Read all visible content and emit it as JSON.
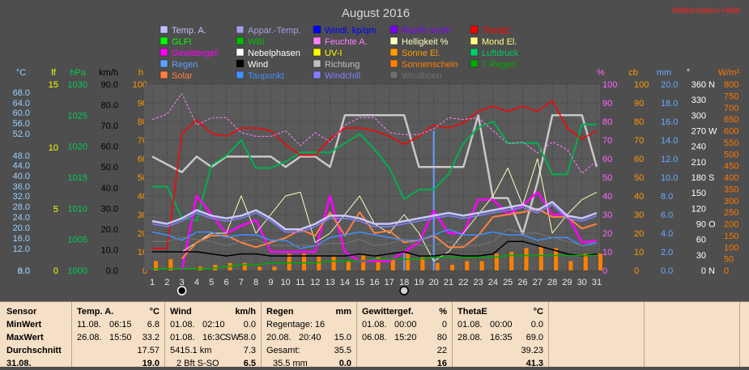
{
  "chart_data": {
    "type": "line",
    "title": "August 2016",
    "corner_link": "Wetterstation Halle",
    "days": [
      1,
      2,
      3,
      4,
      5,
      6,
      7,
      8,
      9,
      10,
      11,
      12,
      13,
      14,
      15,
      16,
      17,
      18,
      19,
      20,
      21,
      22,
      23,
      24,
      25,
      26,
      27,
      28,
      29,
      30,
      31
    ],
    "axes": {
      "celsius": {
        "label": "°C",
        "ticks": [
          "68.0",
          "64.0",
          "60.0",
          "56.0",
          "52.0",
          "48.0",
          "44.0",
          "40.0",
          "36.0",
          "32.0",
          "28.0",
          "24.0",
          "20.0",
          "16.0",
          "12.0",
          "8.0",
          "0.0"
        ],
        "color": "#9ad0ff"
      },
      "lf": {
        "label": "lf",
        "ticks": [
          "15",
          "10",
          "5",
          "0"
        ],
        "color": "#ffff00"
      },
      "hpa": {
        "label": "hPa",
        "ticks": [
          "1030",
          "1025",
          "1020",
          "1015",
          "1010",
          "1005",
          "1000"
        ],
        "color": "#00cc55"
      },
      "kmh": {
        "label": "km/h",
        "ticks": [
          "90.0",
          "80.0",
          "70.0",
          "60.0",
          "50.0",
          "40.0",
          "30.0",
          "20.0",
          "10.0",
          "0.0"
        ],
        "color": "#000000"
      },
      "hours": {
        "label": "h",
        "ticks": [
          "100",
          "90",
          "80",
          "70",
          "60",
          "50",
          "40",
          "30",
          "20",
          "10",
          "0"
        ],
        "color": "#ff9900"
      },
      "percent": {
        "label": "%",
        "ticks": [
          "100",
          "90",
          "80",
          "70",
          "60",
          "50",
          "40",
          "30",
          "20",
          "10",
          "0"
        ],
        "color": "#ff66ff"
      },
      "cb": {
        "label": "cb",
        "ticks": [
          "100",
          "90",
          "80",
          "70",
          "60",
          "50",
          "40",
          "30",
          "20",
          "10",
          "0"
        ],
        "color": "#ff9900"
      },
      "mm": {
        "label": "mm",
        "ticks": [
          "20.0",
          "18.0",
          "16.0",
          "14.0",
          "12.0",
          "10.0",
          "8.0",
          "6.0",
          "4.0",
          "2.0",
          "0.0"
        ],
        "color": "#66aaff"
      },
      "deg": {
        "label": "°",
        "ticks": [
          "360",
          "330",
          "300",
          "270",
          "240",
          "210",
          "180",
          "150",
          "120",
          "90",
          "60",
          "30",
          "0"
        ],
        "dirs": [
          "N",
          "",
          "",
          "W",
          "",
          "",
          "S",
          "",
          "",
          "O",
          "",
          "",
          "N"
        ],
        "color": "#ffffff"
      },
      "wm2": {
        "label": "W/m²",
        "ticks": [
          "800",
          "750",
          "700",
          "650",
          "600",
          "550",
          "500",
          "450",
          "400",
          "350",
          "300",
          "250",
          "200",
          "150",
          "100",
          "50",
          "0"
        ],
        "color": "#ff7700"
      }
    },
    "legend": [
      {
        "name": "Temp. A.",
        "color": "#c0c0ff"
      },
      {
        "name": "Appar.-Temp.",
        "color": "#a0a0e0"
      },
      {
        "name": "Windl. kp/qm",
        "color": "#0000ff"
      },
      {
        "name": "RainR mm/h",
        "color": "#8000ff"
      },
      {
        "name": "ThetaE",
        "color": "#ff0000"
      },
      {
        "name": "GLFI",
        "color": "#00ff00"
      },
      {
        "name": "WBI",
        "color": "#00bb00"
      },
      {
        "name": "Feuchte A.",
        "color": "#ff80ff"
      },
      {
        "name": "Helligkeit %",
        "color": "#ffffc0"
      },
      {
        "name": "Mond El.",
        "color": "#ffff80"
      },
      {
        "name": "Gewittergef.",
        "color": "#ff00ff"
      },
      {
        "name": "Nebelphasen",
        "color": "#ffffff"
      },
      {
        "name": "UV-I",
        "color": "#ffff00"
      },
      {
        "name": "Sonne El.",
        "color": "#ff9900"
      },
      {
        "name": "Luftdruck",
        "color": "#00cc66"
      },
      {
        "name": "Regen",
        "color": "#60a0ff"
      },
      {
        "name": "Wind",
        "color": "#000000"
      },
      {
        "name": "Richtung",
        "color": "#c0c0c0"
      },
      {
        "name": "Sonnenschein",
        "color": "#ff8000"
      },
      {
        "name": "T Regen",
        "color": "#00aa00"
      },
      {
        "name": "Solar",
        "color": "#ff8040"
      },
      {
        "name": "Taupunkt",
        "color": "#4090ff"
      },
      {
        "name": "Windchill",
        "color": "#8080ff"
      },
      {
        "name": "Windböen",
        "color": "#707070"
      }
    ],
    "series": [
      {
        "key": "richtung",
        "color": "#c8c8c8",
        "width": 2.5,
        "unit": "°",
        "values": [
          220,
          205,
          190,
          220,
          200,
          220,
          220,
          220,
          220,
          200,
          220,
          220,
          200,
          300,
          300,
          300,
          300,
          300,
          200,
          200,
          200,
          200,
          300,
          140,
          140,
          70,
          170,
          300,
          300,
          300,
          200
        ]
      },
      {
        "key": "luftdruck",
        "color": "#00b050",
        "width": 2,
        "unit": "hPa",
        "values": [
          1013.5,
          1013.5,
          1008.5,
          1008,
          1017,
          1018.5,
          1021,
          1016.5,
          1016.5,
          1017.5,
          1019,
          1019,
          1019,
          1020.5,
          1022,
          1019.5,
          1016.5,
          1011.5,
          1013,
          1013,
          1015.5,
          1020.5,
          1023,
          1024,
          1020.5,
          1020.5,
          1020.5,
          1015.5,
          1015.5,
          1023.5,
          1023.5
        ]
      },
      {
        "key": "thetae",
        "color": "#ff0000",
        "width": 1.5,
        "unit": "°C",
        "values": [
          8,
          8,
          50,
          55,
          50,
          49,
          52,
          52,
          51,
          46,
          42,
          42,
          48,
          52,
          52,
          51,
          49,
          46,
          49,
          53,
          52,
          54,
          58,
          60,
          58,
          60,
          58,
          62,
          52,
          48,
          51
        ]
      },
      {
        "key": "feuchte",
        "color": "#ff80ff",
        "width": 1,
        "dash": "3,2",
        "unit": "%",
        "values": [
          81,
          84,
          95,
          78,
          82,
          82,
          74,
          72,
          72,
          75,
          67,
          74,
          69,
          78,
          82,
          82,
          74,
          73,
          73,
          76,
          82,
          81,
          82,
          75,
          68,
          69,
          63,
          69,
          65,
          52,
          59
        ]
      },
      {
        "key": "gewitter",
        "color": "#ff00ff",
        "width": 2.5,
        "unit": "%",
        "values": [
          null,
          null,
          0,
          40,
          30,
          20,
          24,
          27,
          10,
          10,
          10,
          10,
          40,
          10,
          5,
          5,
          5,
          10,
          15,
          32,
          20,
          20,
          38,
          38,
          30,
          35,
          42,
          30,
          30,
          15,
          16
        ]
      },
      {
        "key": "helligkeit",
        "color": "#ffffc0",
        "width": 1,
        "unit": "%",
        "values": [
          null,
          null,
          10,
          15,
          20,
          20,
          40,
          20,
          30,
          40,
          42,
          15,
          20,
          30,
          40,
          25,
          20,
          30,
          20,
          5,
          10,
          20,
          30,
          40,
          55,
          35,
          60,
          20,
          30,
          38,
          42
        ]
      },
      {
        "key": "solar",
        "color": "#ff8040",
        "width": 2,
        "unit": "W/m²",
        "values": [
          null,
          null,
          50,
          120,
          150,
          150,
          120,
          100,
          120,
          140,
          175,
          150,
          250,
          150,
          250,
          160,
          170,
          120,
          130,
          150,
          100,
          100,
          150,
          230,
          240,
          250,
          265,
          230,
          230,
          180,
          200
        ]
      },
      {
        "key": "tempA",
        "color": "#c8c8ff",
        "width": 2.5,
        "unit": "°C",
        "values": [
          18,
          17,
          19,
          22,
          20,
          19,
          20,
          22,
          19,
          15,
          15,
          17,
          20,
          20,
          19,
          17,
          17,
          18,
          19,
          20,
          21,
          20,
          21,
          22,
          23,
          24,
          22,
          25,
          20,
          19,
          21
        ]
      },
      {
        "key": "windchill",
        "color": "#8080ff",
        "width": 1.5,
        "unit": "°C",
        "values": [
          17,
          16,
          18,
          21,
          19,
          18,
          19,
          21,
          18,
          14,
          14,
          16,
          19,
          19,
          18,
          16,
          16,
          17,
          18,
          19,
          20,
          19,
          20,
          21,
          22,
          23,
          21,
          24,
          19,
          18,
          20
        ]
      },
      {
        "key": "taupunkt",
        "color": "#4090ff",
        "width": 1.5,
        "unit": "°C",
        "values": [
          14,
          13,
          11,
          14,
          14,
          12,
          13,
          13,
          11,
          11,
          8,
          9,
          12,
          13,
          14,
          13,
          12,
          11,
          11,
          13,
          15,
          13,
          13,
          14,
          13,
          13,
          11,
          12,
          12,
          9,
          10
        ]
      },
      {
        "key": "wind",
        "color": "#000000",
        "width": 1.5,
        "unit": "km/h",
        "values": [
          9,
          9,
          9,
          9,
          8,
          7,
          8,
          8,
          7,
          7,
          7,
          7,
          7,
          7,
          8,
          7,
          8,
          9,
          7,
          7,
          8,
          7,
          7,
          8,
          14,
          14,
          12,
          10,
          8,
          7,
          8
        ]
      },
      {
        "key": "windboeen",
        "color": "#777777",
        "width": 1,
        "unit": "km/h",
        "values": [
          14,
          14,
          16,
          15,
          14,
          12,
          14,
          15,
          12,
          12,
          12,
          12,
          13,
          13,
          15,
          12,
          13,
          15,
          12,
          12,
          14,
          12,
          12,
          14,
          20,
          18,
          18,
          16,
          14,
          12,
          14
        ]
      },
      {
        "key": "tregen",
        "color": "#00aa00",
        "width": 1.5,
        "unit": "%",
        "values": [
          1,
          1,
          1,
          1,
          1,
          2,
          3,
          3,
          4,
          4,
          4,
          4,
          5,
          5,
          5,
          6,
          6,
          6,
          6,
          7,
          7,
          7,
          7,
          7,
          8,
          8,
          8,
          8,
          8,
          8,
          8
        ]
      }
    ],
    "bars": [
      {
        "key": "regen",
        "color": "#60a0ff",
        "unit": "mm",
        "values": [
          0,
          0,
          0,
          0,
          0,
          0,
          0,
          0,
          0,
          0,
          0,
          0,
          0,
          0,
          0,
          0,
          0,
          2,
          0,
          15,
          0,
          0,
          0,
          0,
          0,
          0,
          0,
          0,
          0,
          0,
          0
        ]
      },
      {
        "key": "sonnenschein",
        "color": "#ff8000",
        "unit": "h",
        "values": [
          5,
          6,
          0,
          2,
          3,
          4,
          4,
          2,
          2,
          9,
          9,
          8,
          8,
          5,
          8,
          7,
          6,
          9,
          7,
          4,
          3,
          5,
          5,
          9,
          10,
          12,
          13,
          12,
          5,
          9,
          9
        ]
      }
    ],
    "moon_markers": [
      {
        "day": 3,
        "phase": "new"
      },
      {
        "day": 18,
        "phase": "full"
      }
    ]
  },
  "stats": {
    "rows": [
      "Sensor",
      "MinWert",
      "MaxWert",
      "Durchschnitt",
      "31.08."
    ],
    "blocks": [
      {
        "title": "Temp. A.",
        "unit": "°C",
        "min": {
          "date": "11.08.",
          "time": "06:15",
          "value": "6.8"
        },
        "max": {
          "date": "26.08.",
          "time": "15:50",
          "value": "33.2"
        },
        "avg": {
          "value": "17.57"
        },
        "today": {
          "value": "19.0"
        }
      },
      {
        "title": "Wind",
        "unit": "km/h",
        "min": {
          "date": "01.08.",
          "time": "02:10",
          "value": "0.0"
        },
        "max": {
          "date": "01.08.",
          "time": "16:3C",
          "dir": "SW",
          "value": "58.0"
        },
        "avg": {
          "left": "5415.1 km",
          "value": "7.3"
        },
        "today": {
          "left": "2 Bft S-SO",
          "value": "6.5"
        }
      },
      {
        "title": "Regen",
        "unit": "mm",
        "min": {
          "label": "Regentage: 16"
        },
        "max": {
          "date": "20.08.",
          "time": "20:40",
          "value": "15.0"
        },
        "avg": {
          "label": "Gesamt:",
          "value": "35.5"
        },
        "today": {
          "label": "35.5 mm",
          "value": "0.0"
        }
      },
      {
        "title": "Gewittergef.",
        "unit": "%",
        "min": {
          "date": "01.08.",
          "time": "00:00",
          "value": "0"
        },
        "max": {
          "date": "06.08.",
          "time": "15:20",
          "value": "80"
        },
        "avg": {
          "value": "22"
        },
        "today": {
          "value": "16"
        }
      },
      {
        "title": "ThetaE",
        "unit": "°C",
        "min": {
          "date": "01.08.",
          "time": "00:00",
          "value": "0.0"
        },
        "max": {
          "date": "28.08.",
          "time": "16:35",
          "value": "69.0"
        },
        "avg": {
          "value": "39.23"
        },
        "today": {
          "value": "41.3"
        }
      }
    ]
  }
}
